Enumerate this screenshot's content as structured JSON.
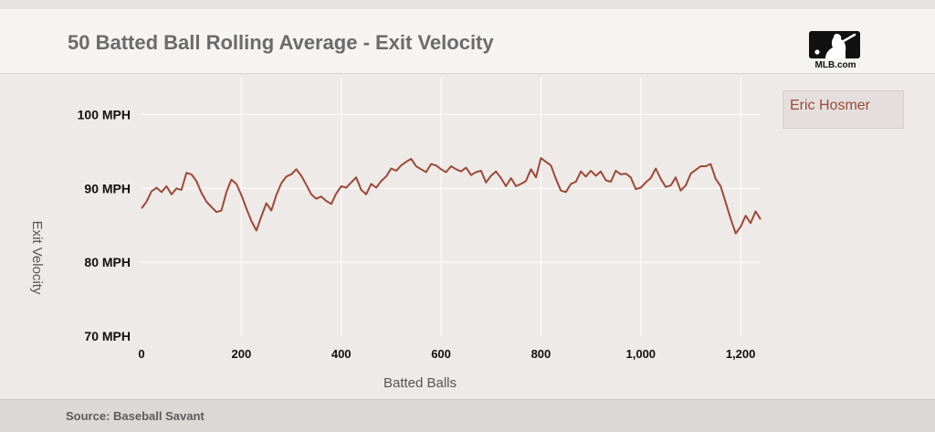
{
  "header": {
    "title": "50 Batted Ball Rolling Average - Exit Velocity",
    "logo_text": "MLB.com"
  },
  "legend": {
    "label": "Eric Hosmer"
  },
  "footer": {
    "source": "Source: Baseball Savant"
  },
  "colors": {
    "series": "#9b4a36",
    "grid": "#ffffff",
    "background": "#eeeae8"
  },
  "chart_data": {
    "type": "line",
    "title": "50 Batted Ball Rolling Average - Exit Velocity",
    "xlabel": "Batted Balls",
    "ylabel": "Exit Velocity",
    "xlim": [
      0,
      1240
    ],
    "ylim": [
      70,
      105
    ],
    "x_ticks": [
      0,
      200,
      400,
      600,
      800,
      1000,
      1200
    ],
    "x_tick_labels": [
      "0",
      "200",
      "400",
      "600",
      "800",
      "1,000",
      "1,200"
    ],
    "y_ticks": [
      70,
      80,
      90,
      100
    ],
    "y_tick_labels": [
      "70 MPH",
      "80 MPH",
      "90 MPH",
      "100 MPH"
    ],
    "grid": true,
    "legend_position": "right",
    "series": [
      {
        "name": "Eric Hosmer",
        "x": [
          0,
          10,
          20,
          30,
          40,
          50,
          60,
          70,
          80,
          90,
          100,
          110,
          120,
          130,
          140,
          150,
          160,
          170,
          180,
          190,
          200,
          210,
          220,
          230,
          240,
          250,
          260,
          270,
          280,
          290,
          300,
          310,
          320,
          330,
          340,
          350,
          360,
          370,
          380,
          390,
          400,
          410,
          420,
          430,
          440,
          450,
          460,
          470,
          480,
          490,
          500,
          510,
          520,
          530,
          540,
          550,
          560,
          570,
          580,
          590,
          600,
          610,
          620,
          630,
          640,
          650,
          660,
          670,
          680,
          690,
          700,
          710,
          720,
          730,
          740,
          750,
          760,
          770,
          780,
          790,
          800,
          810,
          820,
          830,
          840,
          850,
          860,
          870,
          880,
          890,
          900,
          910,
          920,
          930,
          940,
          950,
          960,
          970,
          980,
          990,
          1000,
          1010,
          1020,
          1030,
          1040,
          1050,
          1060,
          1070,
          1080,
          1090,
          1100,
          1110,
          1120,
          1130,
          1140,
          1150,
          1160,
          1170,
          1180,
          1190,
          1200,
          1210,
          1220,
          1230,
          1240
        ],
        "values": [
          87.3,
          88.2,
          89.6,
          90.1,
          89.5,
          90.3,
          89.2,
          90.0,
          89.8,
          92.1,
          91.9,
          91.0,
          89.4,
          88.2,
          87.5,
          86.8,
          87.0,
          89.5,
          91.2,
          90.6,
          89.1,
          87.3,
          85.6,
          84.3,
          86.2,
          88.0,
          87.0,
          89.1,
          90.7,
          91.6,
          91.9,
          92.6,
          91.7,
          90.5,
          89.2,
          88.6,
          88.9,
          88.3,
          87.9,
          89.3,
          90.3,
          90.1,
          90.8,
          91.5,
          89.8,
          89.2,
          90.6,
          90.1,
          91.0,
          91.6,
          92.7,
          92.4,
          93.1,
          93.6,
          94.0,
          93.0,
          92.6,
          92.2,
          93.3,
          93.1,
          92.6,
          92.2,
          93.0,
          92.6,
          92.3,
          92.8,
          91.8,
          92.2,
          92.4,
          90.8,
          91.7,
          92.3,
          91.4,
          90.3,
          91.4,
          90.3,
          90.6,
          91.0,
          92.6,
          91.5,
          94.1,
          93.6,
          93.1,
          91.3,
          89.7,
          89.5,
          90.6,
          90.9,
          92.3,
          91.6,
          92.4,
          91.7,
          92.3,
          91.1,
          90.9,
          92.4,
          91.9,
          92.0,
          91.5,
          89.9,
          90.1,
          90.8,
          91.4,
          92.7,
          91.3,
          90.2,
          90.4,
          91.5,
          89.7,
          90.4,
          92.0,
          92.5,
          93.0,
          93.0,
          93.3,
          91.3,
          90.3,
          88.1,
          85.9,
          83.9,
          84.8,
          86.3,
          85.3,
          86.9,
          85.8
        ]
      }
    ]
  }
}
